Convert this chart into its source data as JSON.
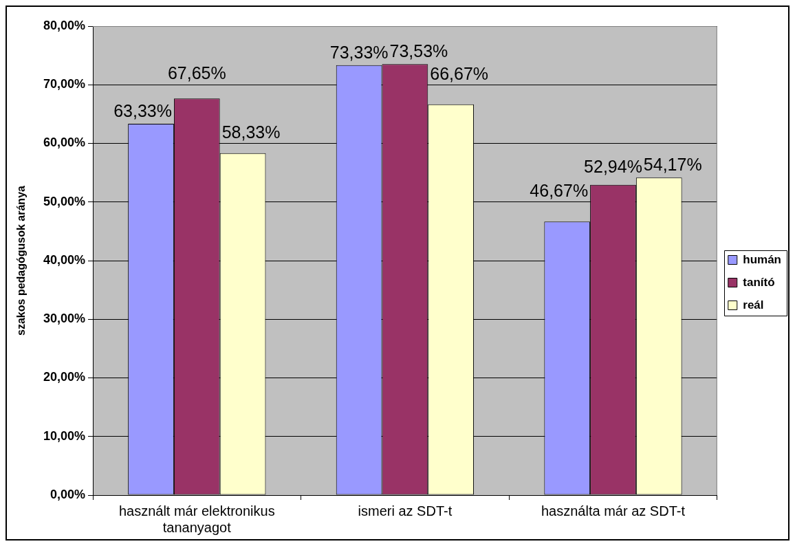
{
  "chart_data": {
    "type": "bar",
    "ylabel": "szakos pedagógusok aránya",
    "categories": [
      "használt már elektronikus tananyagot",
      "ismeri az SDT-t",
      "használta már az SDT-t"
    ],
    "series": [
      {
        "name": "humán",
        "color": "#9999ff",
        "values": [
          63.33,
          73.33,
          46.67
        ],
        "value_labels": [
          "63,33%",
          "73,33%",
          "46,67%"
        ]
      },
      {
        "name": "tanító",
        "color": "#993366",
        "values": [
          67.65,
          73.53,
          52.94
        ],
        "value_labels": [
          "67,65%",
          "73,53%",
          "52,94%"
        ]
      },
      {
        "name": "reál",
        "color": "#ffffcc",
        "values": [
          58.33,
          66.67,
          54.17
        ],
        "value_labels": [
          "58,33%",
          "66,67%",
          "54,17%"
        ]
      }
    ],
    "ylim": [
      0,
      80
    ],
    "yticks": [
      {
        "value": 0,
        "label": "0,00%"
      },
      {
        "value": 10,
        "label": "10,00%"
      },
      {
        "value": 20,
        "label": "20,00%"
      },
      {
        "value": 30,
        "label": "30,00%"
      },
      {
        "value": 40,
        "label": "40,00%"
      },
      {
        "value": 50,
        "label": "50,00%"
      },
      {
        "value": 60,
        "label": "60,00%"
      },
      {
        "value": 70,
        "label": "70,00%"
      },
      {
        "value": 80,
        "label": "80,00%"
      }
    ],
    "grid": "y",
    "legend": "right"
  }
}
